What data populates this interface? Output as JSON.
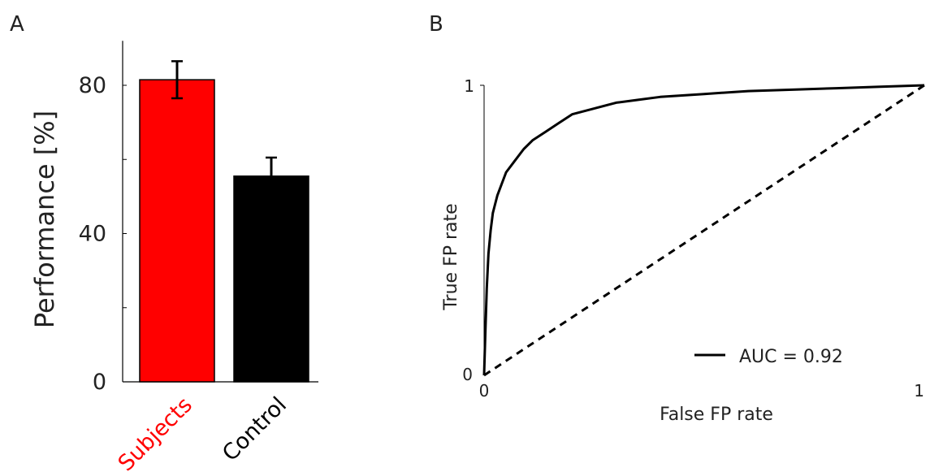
{
  "chart_data": [
    {
      "panel": "A",
      "type": "bar",
      "categories": [
        "Subjects",
        "Control"
      ],
      "category_colors": [
        "#ff0000",
        "#000000"
      ],
      "values": [
        81.5,
        55.5
      ],
      "errors": [
        5,
        5
      ],
      "ylabel": "Performance [%]",
      "yticks": [
        0,
        40,
        80
      ],
      "ylim": [
        0,
        92
      ]
    },
    {
      "panel": "B",
      "type": "line",
      "xlabel": "False FP  rate",
      "ylabel": "True FP  rate",
      "xticks": [
        "0",
        "1"
      ],
      "yticks": [
        "0",
        "1"
      ],
      "xlim": [
        0,
        1
      ],
      "ylim": [
        0,
        1
      ],
      "series": [
        {
          "style": "solid",
          "color": "#000000",
          "x": [
            0,
            0.003,
            0.006,
            0.01,
            0.015,
            0.02,
            0.03,
            0.04,
            0.05,
            0.07,
            0.09,
            0.11,
            0.14,
            0.17,
            0.2,
            0.25,
            0.3,
            0.35,
            0.4,
            0.5,
            0.6,
            0.7,
            0.8,
            0.9,
            1.0
          ],
          "y": [
            0,
            0.15,
            0.3,
            0.42,
            0.5,
            0.56,
            0.62,
            0.66,
            0.7,
            0.74,
            0.78,
            0.81,
            0.84,
            0.87,
            0.9,
            0.92,
            0.94,
            0.95,
            0.96,
            0.97,
            0.98,
            0.985,
            0.99,
            0.995,
            1.0
          ]
        },
        {
          "style": "dashed",
          "color": "#000000",
          "x": [
            0,
            1
          ],
          "y": [
            0,
            1
          ]
        }
      ],
      "legend": {
        "label": "AUC = 0.92",
        "placement": "bottom-right"
      }
    }
  ],
  "panel_labels": [
    "A",
    "B"
  ]
}
